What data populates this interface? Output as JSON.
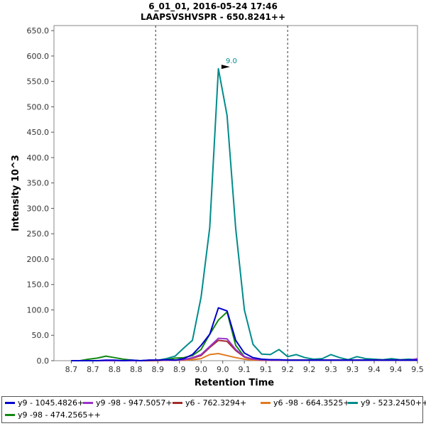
{
  "chart_data": {
    "type": "line",
    "title": "6_01_01, 2016-05-24 17:46",
    "subtitle": "LAAPSVSHVSPR - 650.8241++",
    "xlabel": "Retention Time",
    "ylabel": "Intensity 10^3",
    "xlim": [
      8.66,
      9.5
    ],
    "ylim": [
      0,
      660
    ],
    "yticks": [
      0,
      50,
      100,
      150,
      200,
      250,
      300,
      350,
      400,
      450,
      500,
      550,
      600,
      650
    ],
    "ytick_labels": [
      "0.0",
      "50.0",
      "100.0",
      "150.0",
      "200.0",
      "250.0",
      "300.0",
      "350.0",
      "400.0",
      "450.0",
      "500.0",
      "550.0",
      "600.0",
      "650.0"
    ],
    "xticks": [
      8.7,
      8.75,
      8.8,
      8.85,
      8.9,
      8.95,
      9.0,
      9.05,
      9.1,
      9.15,
      9.2,
      9.25,
      9.3,
      9.35,
      9.4,
      9.45,
      9.5
    ],
    "xtick_labels": [
      "8.7",
      "8.7",
      "8.8",
      "8.8",
      "8.9",
      "8.9",
      "9.0",
      "9.0",
      "9.1",
      "9.1",
      "9.2",
      "9.2",
      "9.3",
      "9.3",
      "9.4",
      "9.4",
      "9.5"
    ],
    "grid": false,
    "boundaries": [
      8.895,
      9.2
    ],
    "annotation": {
      "text": "9.0",
      "x": 9.07,
      "y": 576
    },
    "legend_position": "bottom",
    "x": [
      8.7,
      8.72,
      8.74,
      8.76,
      8.78,
      8.8,
      8.82,
      8.84,
      8.86,
      8.88,
      8.9,
      8.92,
      8.94,
      8.96,
      8.98,
      9.0,
      9.02,
      9.04,
      9.06,
      9.08,
      9.1,
      9.12,
      9.14,
      9.16,
      9.18,
      9.2,
      9.22,
      9.24,
      9.26,
      9.28,
      9.3,
      9.32,
      9.34,
      9.36,
      9.38,
      9.4,
      9.42,
      9.44,
      9.46,
      9.48,
      9.5
    ],
    "series": [
      {
        "name": "y9 - 1045.4826+",
        "color": "#0000cc",
        "values": [
          0,
          0,
          0,
          0,
          1,
          1,
          0,
          1,
          0,
          1,
          1,
          2,
          1,
          4,
          12,
          30,
          52,
          104,
          98,
          40,
          15,
          6,
          3,
          2,
          2,
          1,
          1,
          1,
          1,
          1,
          1,
          1,
          1,
          1,
          1,
          1,
          1,
          1,
          1,
          1,
          1
        ]
      },
      {
        "name": "y9 -98 - 947.5057+",
        "color": "#9933cc",
        "values": [
          0,
          0,
          0,
          0,
          0,
          0,
          0,
          0,
          0,
          1,
          1,
          1,
          1,
          2,
          6,
          12,
          28,
          44,
          43,
          22,
          8,
          3,
          2,
          1,
          1,
          1,
          1,
          1,
          1,
          1,
          1,
          1,
          1,
          1,
          1,
          1,
          1,
          1,
          1,
          1,
          4
        ]
      },
      {
        "name": "y6 - 762.3294+",
        "color": "#a52a2a",
        "values": [
          0,
          0,
          0,
          0,
          0,
          0,
          0,
          0,
          0,
          0,
          1,
          1,
          1,
          2,
          5,
          10,
          26,
          40,
          38,
          20,
          7,
          3,
          1,
          1,
          1,
          1,
          1,
          1,
          1,
          1,
          1,
          1,
          1,
          1,
          1,
          1,
          1,
          1,
          1,
          1,
          1
        ]
      },
      {
        "name": "y6 -98 - 664.3525+",
        "color": "#e07b20",
        "values": [
          0,
          0,
          0,
          0,
          0,
          0,
          0,
          0,
          0,
          0,
          0,
          1,
          1,
          1,
          2,
          4,
          12,
          14,
          10,
          6,
          3,
          1,
          1,
          1,
          1,
          1,
          1,
          1,
          1,
          1,
          1,
          1,
          1,
          1,
          1,
          1,
          1,
          1,
          1,
          1,
          1
        ]
      },
      {
        "name": "y9 - 523.2450++",
        "color": "#008b8b",
        "values": [
          0,
          0,
          0,
          0,
          0,
          0,
          0,
          0,
          0,
          0,
          1,
          4,
          9,
          25,
          40,
          125,
          262,
          575,
          483,
          260,
          100,
          32,
          13,
          12,
          22,
          8,
          12,
          6,
          3,
          4,
          12,
          6,
          2,
          8,
          4,
          3,
          2,
          4,
          2,
          3,
          2
        ]
      },
      {
        "name": "y9 -98 - 474.2565++",
        "color": "#118811",
        "values": [
          0,
          0,
          3,
          5,
          9,
          6,
          3,
          1,
          0,
          1,
          1,
          2,
          5,
          6,
          10,
          22,
          52,
          80,
          96,
          30,
          8,
          3,
          2,
          2,
          1,
          1,
          1,
          1,
          1,
          1,
          1,
          1,
          1,
          1,
          1,
          1,
          1,
          1,
          1,
          1,
          1
        ]
      }
    ]
  }
}
